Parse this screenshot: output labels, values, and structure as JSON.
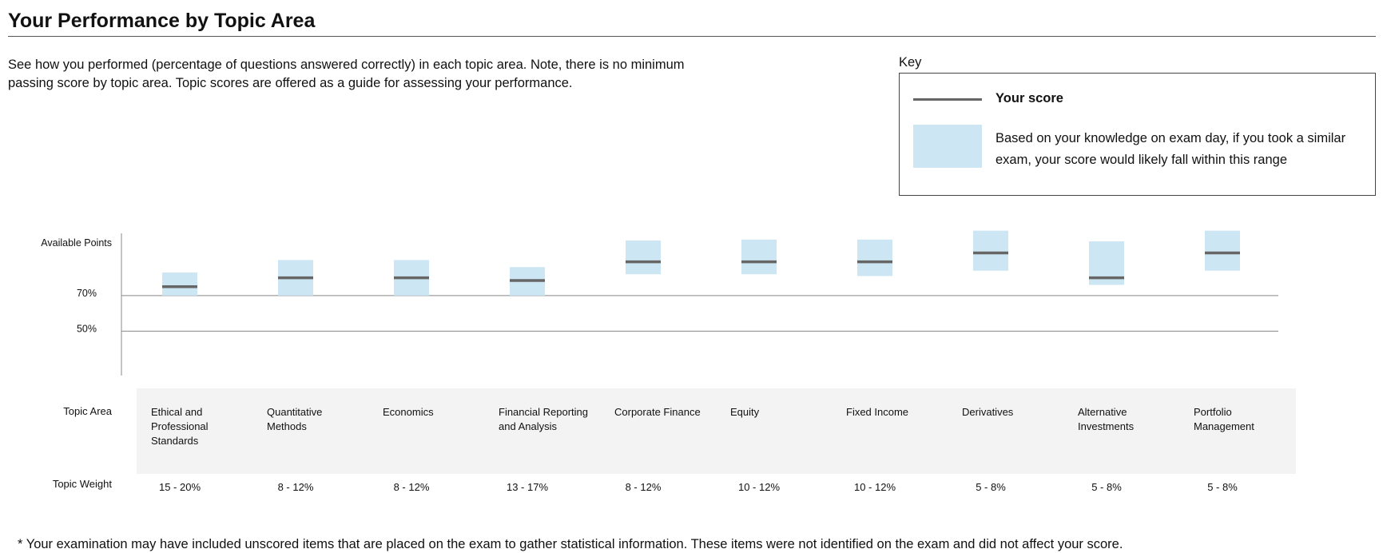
{
  "header": {
    "title": "Your Performance by Topic Area"
  },
  "intro": "See how you performed (percentage of questions answered correctly) in each topic area. Note, there is no minimum passing score by topic area. Topic scores are offered as a guide for assessing your performance.",
  "key": {
    "label": "Key",
    "score_label": "Your score",
    "range_label": "Based on your knowledge on exam day, if you took a similar exam, your score would likely fall within this range"
  },
  "colors": {
    "range_fill": "#cde6f4",
    "score_line": "#666666",
    "axis": "#888888",
    "band": "#f3f3f3"
  },
  "chart_data": {
    "type": "range",
    "y_tick_labels": [
      {
        "value": 70,
        "label": "70%"
      },
      {
        "value": 50,
        "label": "50%"
      }
    ],
    "y_top_label": "Available Points",
    "ylim": [
      25,
      105
    ],
    "categories": [
      "Ethical and Professional Standards",
      "Quantitative Methods",
      "Economics",
      "Financial Reporting and Analysis",
      "Corporate Finance",
      "Equity",
      "Fixed Income",
      "Derivatives",
      "Alternative Investments",
      "Portfolio Management"
    ],
    "series": [
      {
        "values": [
          75,
          80,
          80,
          78.5,
          89,
          89,
          89,
          94,
          80,
          94
        ]
      }
    ],
    "range_low": [
      70,
      70,
      70,
      70,
      82,
      82,
      81,
      84,
      76,
      84
    ],
    "range_high": [
      83,
      90,
      90,
      86,
      101,
      101.5,
      101.5,
      106.5,
      100.5,
      106.5
    ]
  },
  "topics": {
    "row_label": "Topic Area",
    "weight_label": "Topic Weight",
    "items": [
      {
        "name": "Ethical and Professional Standards",
        "weight": "15 - 20%"
      },
      {
        "name": "Quantitative Methods",
        "weight": "8 - 12%"
      },
      {
        "name": "Economics",
        "weight": "8 - 12%"
      },
      {
        "name": "Financial Reporting and Analysis",
        "weight": "13 - 17%"
      },
      {
        "name": "Corporate Finance",
        "weight": "8 - 12%"
      },
      {
        "name": "Equity",
        "weight": "10 - 12%"
      },
      {
        "name": "Fixed Income",
        "weight": "10 - 12%"
      },
      {
        "name": "Derivatives",
        "weight": "5 - 8%"
      },
      {
        "name": "Alternative Investments",
        "weight": "5 - 8%"
      },
      {
        "name": "Portfolio Management",
        "weight": "5 - 8%"
      }
    ]
  },
  "footnote": "* Your examination may have included unscored items that are placed on the exam to gather statistical information. These items were not identified on the exam and did not affect your score."
}
